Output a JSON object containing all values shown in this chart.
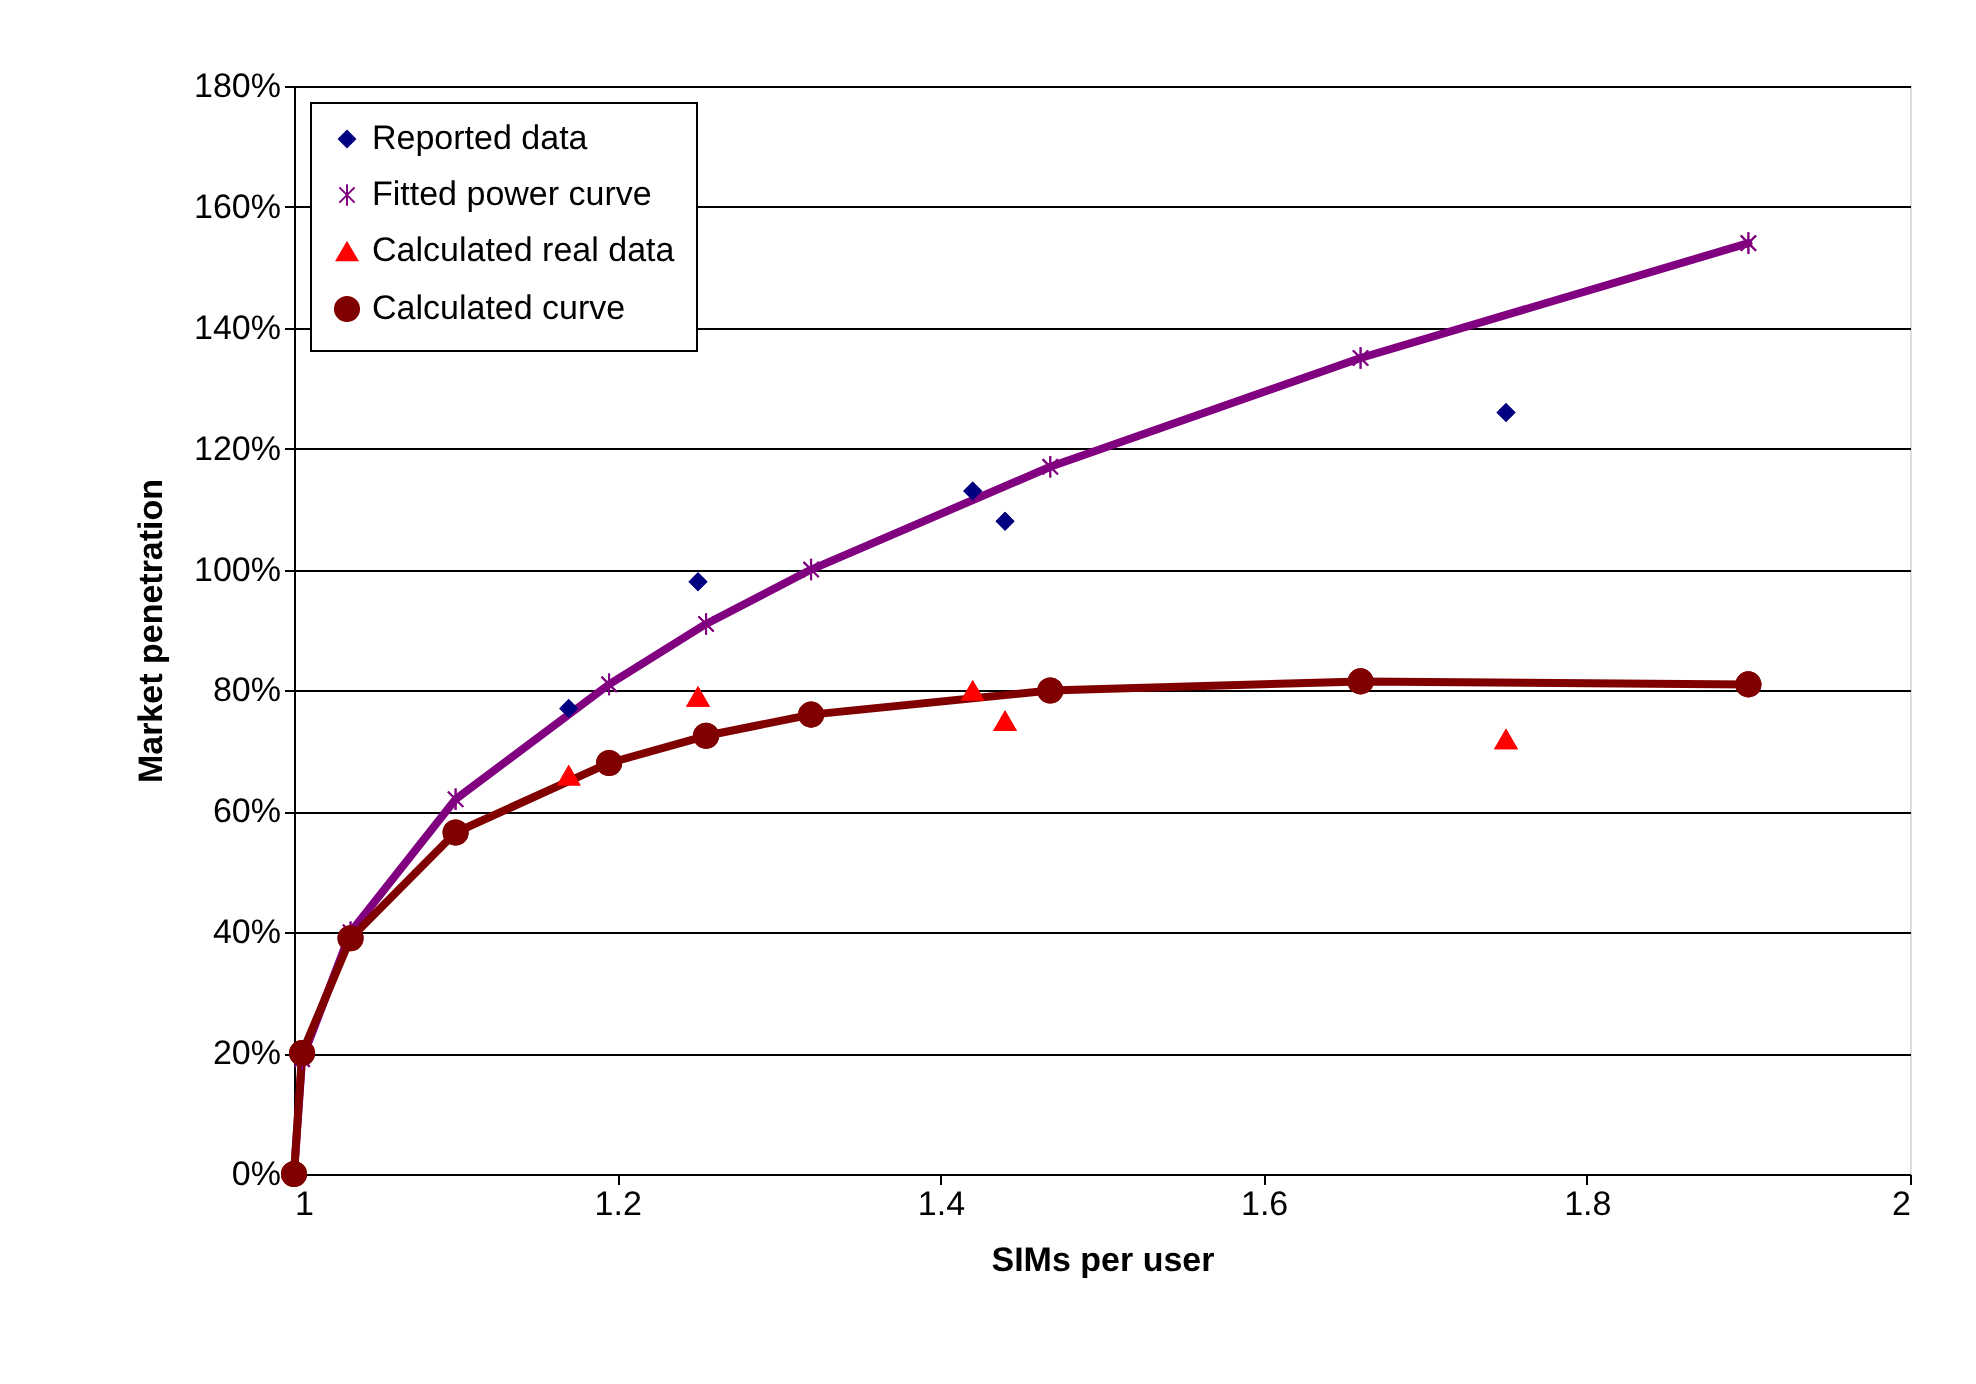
{
  "chart_data": {
    "type": "line",
    "xlabel": "SIMs per user",
    "ylabel": "Market penetration",
    "xlim": [
      1,
      2
    ],
    "xticks": [
      1,
      1.2,
      1.4,
      1.6,
      1.8,
      2
    ],
    "ylim": [
      0,
      180
    ],
    "yticks": [
      {
        "value": 0,
        "label": "0%"
      },
      {
        "value": 20,
        "label": "20%"
      },
      {
        "value": 40,
        "label": "40%"
      },
      {
        "value": 60,
        "label": "60%"
      },
      {
        "value": 80,
        "label": "80%"
      },
      {
        "value": 100,
        "label": "100%"
      },
      {
        "value": 120,
        "label": "120%"
      },
      {
        "value": 140,
        "label": "140%"
      },
      {
        "value": 160,
        "label": "160%"
      },
      {
        "value": 180,
        "label": "180%"
      }
    ],
    "grid": "y",
    "legend": "top left",
    "series": [
      {
        "name": "Reported data",
        "type": "scatter",
        "marker": "diamond",
        "color": "#000080",
        "x": [
          1.17,
          1.25,
          1.42,
          1.44,
          1.75
        ],
        "values": [
          77,
          98,
          113,
          108,
          126
        ]
      },
      {
        "name": "Fitted power curve",
        "marker": "cross",
        "color": "#800080",
        "x": [
          1,
          1.005,
          1.035,
          1.1,
          1.195,
          1.255,
          1.32,
          1.468,
          1.66,
          1.9
        ],
        "values": [
          0,
          19,
          40,
          62,
          81,
          91,
          100,
          117,
          135,
          154
        ]
      },
      {
        "name": "Calculated real data",
        "type": "scatter",
        "marker": "triangle",
        "color": "#ff0000",
        "x": [
          1.17,
          1.25,
          1.42,
          1.44,
          1.75
        ],
        "values": [
          66,
          79,
          80,
          75,
          72
        ]
      },
      {
        "name": "Calculated curve",
        "marker": "circle",
        "color": "#800000",
        "x": [
          1,
          1.005,
          1.035,
          1.1,
          1.195,
          1.255,
          1.32,
          1.468,
          1.66,
          1.9
        ],
        "values": [
          0,
          20,
          39,
          56.5,
          68,
          72.5,
          76,
          80,
          81.5,
          81
        ]
      }
    ]
  }
}
